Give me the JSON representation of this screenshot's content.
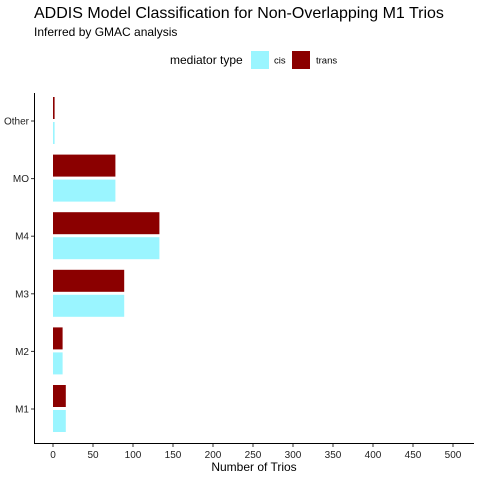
{
  "chart_data": {
    "type": "bar",
    "orientation": "horizontal",
    "title": "ADDIS Model Classification for Non-Overlapping M1 Trios",
    "subtitle": "Inferred by GMAC analysis",
    "xlabel": "Number of Trios",
    "ylabel": "",
    "xlim": [
      0,
      500
    ],
    "x_ticks": [
      0,
      50,
      100,
      150,
      200,
      250,
      300,
      350,
      400,
      450,
      500
    ],
    "categories": [
      "M1",
      "M2",
      "M3",
      "M4",
      "MO",
      "Other"
    ],
    "legend": {
      "title": "mediator type",
      "placement": "top"
    },
    "grid": false,
    "series": [
      {
        "name": "cis",
        "color": "#9AF5FF",
        "values": [
          16,
          12,
          89,
          133,
          78,
          2
        ]
      },
      {
        "name": "trans",
        "color": "#8B0000",
        "values": [
          16,
          12,
          89,
          133,
          78,
          2
        ]
      }
    ]
  }
}
